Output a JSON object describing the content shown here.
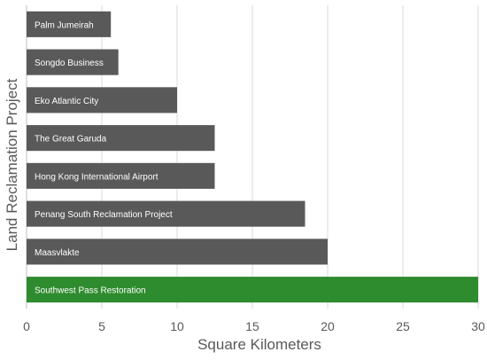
{
  "chart_data": {
    "type": "bar",
    "orientation": "horizontal",
    "xlabel": "Square Kilometers",
    "ylabel": "Land Reclamation Project",
    "xlim": [
      0,
      30
    ],
    "xticks": [
      0,
      5,
      10,
      15,
      20,
      25,
      30
    ],
    "grid": "vertical",
    "categories": [
      "Palm Jumeirah",
      "Songdo Business",
      "Eko Atlantic City",
      "The Great Garuda",
      "Hong Kong International Airport",
      "Penang South Reclamation Project",
      "Maasvlakte",
      "Southwest Pass Restoration"
    ],
    "values": [
      5.6,
      6.1,
      10,
      12.5,
      12.5,
      18.5,
      20,
      30
    ],
    "highlight_category": "Southwest Pass Restoration",
    "colors": {
      "bar": "#595959",
      "highlight": "#2e8b2e",
      "bar_label": "#ffffff",
      "grid": "#d9d9d9",
      "axis": "#bfbfbf",
      "text": "#595959"
    }
  }
}
